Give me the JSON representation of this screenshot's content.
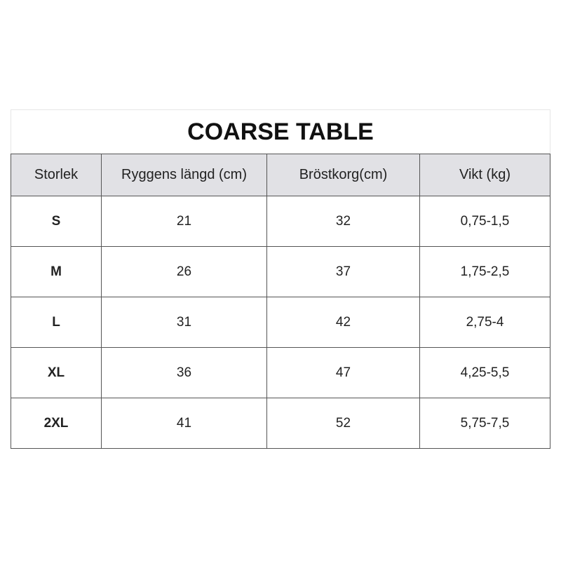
{
  "title": "COARSE TABLE",
  "headers": [
    "Storlek",
    "Ryggens längd (cm)",
    "Bröstkorg(cm)",
    "Vikt (kg)"
  ],
  "rows": [
    [
      "S",
      "21",
      "32",
      "0,75-1,5"
    ],
    [
      "M",
      "26",
      "37",
      "1,75-2,5"
    ],
    [
      "L",
      "31",
      "42",
      "2,75-4"
    ],
    [
      "XL",
      "36",
      "47",
      "4,25-5,5"
    ],
    [
      "2XL",
      "41",
      "52",
      "5,75-7,5"
    ]
  ]
}
